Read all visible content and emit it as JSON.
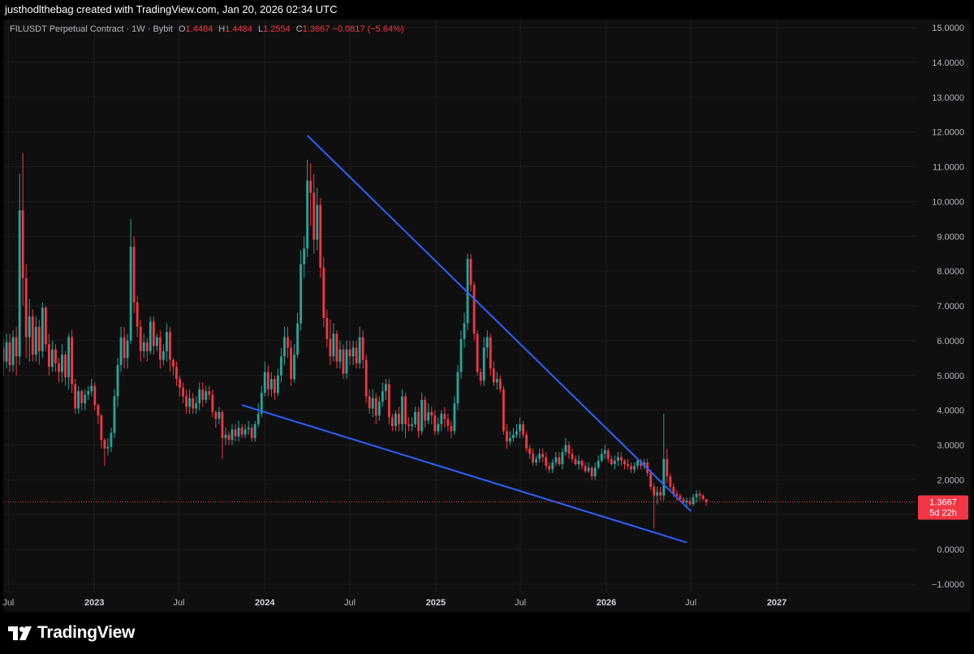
{
  "header": {
    "credit": "justhodlthebag created with TradingView.com, Jan 20, 2026 02:34 UTC"
  },
  "legend": {
    "symbol": "FILUSDT Perpetual Contract · 1W · Bybit",
    "o_label": "O",
    "o_value": "1.4484",
    "h_label": "H",
    "h_value": "1.4484",
    "l_label": "L",
    "l_value": "1.2554",
    "c_label": "C",
    "c_value": "1.3667",
    "change": "−0.0817 (−5.64%)"
  },
  "price_tag": {
    "price": "1.3667",
    "countdown": "5d 22h"
  },
  "footer": {
    "brand": "TradingView"
  },
  "colors": {
    "up": "#26a69a",
    "down": "#f23645",
    "trendline": "#2962ff",
    "background": "#0f0f0f",
    "grid": "#1e1e1e"
  },
  "chart_data": {
    "type": "candlestick",
    "symbol": "FILUSDT",
    "interval": "1W",
    "ylim": [
      -1,
      15
    ],
    "y_ticks": [
      "15.0000",
      "14.0000",
      "13.0000",
      "12.0000",
      "11.0000",
      "10.0000",
      "9.0000",
      "8.0000",
      "7.0000",
      "6.0000",
      "5.0000",
      "4.0000",
      "3.0000",
      "2.0000",
      "1.0000",
      "0.0000",
      "−1.0000"
    ],
    "y_tick_values": [
      15,
      14,
      13,
      12,
      11,
      10,
      9,
      8,
      7,
      6,
      5,
      4,
      3,
      2,
      1,
      0,
      -1
    ],
    "x_range": [
      "2022-06-20",
      "2027-10-25"
    ],
    "x_ticks": [
      {
        "label": "Jul",
        "date": "2022-07-01",
        "bold": false
      },
      {
        "label": "2023",
        "date": "2023-01-01",
        "bold": true
      },
      {
        "label": "Jul",
        "date": "2023-07-01",
        "bold": false
      },
      {
        "label": "2024",
        "date": "2024-01-01",
        "bold": true
      },
      {
        "label": "Jul",
        "date": "2024-07-01",
        "bold": false
      },
      {
        "label": "2025",
        "date": "2025-01-01",
        "bold": true
      },
      {
        "label": "Jul",
        "date": "2025-07-01",
        "bold": false
      },
      {
        "label": "2026",
        "date": "2026-01-01",
        "bold": true
      },
      {
        "label": "Jul",
        "date": "2026-07-01",
        "bold": false
      },
      {
        "label": "2027",
        "date": "2027-01-01",
        "bold": true
      }
    ],
    "last_price": 1.3667,
    "series": [
      {
        "name": "FILUSDT",
        "start_date": "2022-06-20",
        "open_first": 5.8,
        "closes": [
          5.4,
          5.95,
          5.3,
          6.1,
          5.55,
          9.75,
          7.8,
          6.1,
          6.7,
          5.6,
          6.4,
          5.7,
          6.95,
          5.9,
          5.25,
          5.75,
          5.35,
          5.1,
          5.6,
          4.95,
          6.1,
          4.75,
          4.05,
          4.55,
          4.2,
          4.45,
          4.55,
          4.7,
          4.15,
          3.85,
          3.15,
          2.9,
          2.95,
          3.35,
          4.4,
          5.3,
          6.1,
          5.5,
          6.0,
          8.7,
          7.1,
          6.4,
          5.7,
          5.95,
          5.7,
          6.55,
          5.85,
          6.1,
          5.45,
          5.7,
          6.25,
          5.45,
          5.25,
          4.9,
          4.65,
          4.4,
          4.1,
          4.35,
          4.05,
          4.2,
          4.6,
          4.3,
          4.55,
          4.45,
          3.95,
          3.75,
          3.95,
          3.2,
          3.3,
          3.15,
          3.45,
          3.25,
          3.5,
          3.3,
          3.45,
          3.5,
          3.2,
          3.6,
          3.9,
          4.5,
          5.1,
          4.6,
          4.9,
          4.5,
          5.0,
          5.55,
          6.1,
          5.8,
          4.9,
          5.6,
          6.5,
          8.2,
          8.65,
          10.6,
          10.25,
          8.9,
          9.9,
          8.1,
          6.65,
          6.05,
          5.55,
          6.2,
          5.4,
          5.75,
          5.05,
          5.75,
          5.55,
          5.8,
          5.35,
          6.1,
          5.45,
          4.4,
          4.05,
          4.35,
          3.85,
          4.25,
          4.55,
          4.75,
          3.8,
          3.55,
          3.9,
          3.6,
          4.4,
          3.6,
          3.55,
          3.6,
          3.95,
          3.4,
          4.3,
          3.7,
          3.95,
          3.85,
          3.4,
          3.6,
          3.9,
          3.75,
          3.55,
          3.4,
          4.2,
          5.1,
          6.05,
          6.5,
          8.35,
          7.6,
          6.2,
          5.1,
          4.85,
          5.8,
          6.1,
          5.2,
          4.8,
          4.9,
          4.6,
          3.4,
          3.1,
          3.2,
          3.3,
          3.4,
          3.6,
          3.3,
          2.9,
          2.75,
          2.5,
          2.6,
          2.75,
          2.65,
          2.4,
          2.3,
          2.5,
          2.65,
          2.45,
          2.8,
          3.0,
          2.75,
          2.6,
          2.45,
          2.55,
          2.4,
          2.25,
          2.35,
          2.1,
          2.35,
          2.55,
          2.75,
          2.85,
          2.6,
          2.45,
          2.55,
          2.65,
          2.55,
          2.45,
          2.4,
          2.3,
          2.4,
          2.55,
          2.4,
          2.5,
          2.2,
          1.8,
          1.55,
          1.65,
          1.55,
          2.6,
          2.1,
          1.8,
          1.6,
          1.55,
          1.45,
          1.35,
          1.4,
          1.3,
          1.5,
          1.6,
          1.55,
          1.45,
          1.3667
        ],
        "lows": [
          5.0,
          5.2,
          5.1,
          5.1,
          5.0,
          5.3,
          7.0,
          5.5,
          5.4,
          5.4,
          5.4,
          5.3,
          5.5,
          5.7,
          5.0,
          5.1,
          5.1,
          4.8,
          4.8,
          4.7,
          4.6,
          4.5,
          3.9,
          3.9,
          4.0,
          4.0,
          4.3,
          4.4,
          4.0,
          3.6,
          2.9,
          2.4,
          2.7,
          2.8,
          3.2,
          4.1,
          5.1,
          5.2,
          5.2,
          5.9,
          6.8,
          6.1,
          5.4,
          5.5,
          5.4,
          5.6,
          5.6,
          5.7,
          5.2,
          5.3,
          5.4,
          5.1,
          5.0,
          4.7,
          4.4,
          4.2,
          3.9,
          3.9,
          3.9,
          3.9,
          4.0,
          4.1,
          4.2,
          4.3,
          3.8,
          3.5,
          3.6,
          2.6,
          3.0,
          3.0,
          3.0,
          3.1,
          3.1,
          3.2,
          3.2,
          3.3,
          3.1,
          3.1,
          3.5,
          3.8,
          4.4,
          4.4,
          4.4,
          4.3,
          4.4,
          4.8,
          5.3,
          5.5,
          4.7,
          4.8,
          5.5,
          6.3,
          7.8,
          8.4,
          9.3,
          8.5,
          8.6,
          7.8,
          6.4,
          5.8,
          5.3,
          5.4,
          5.2,
          5.2,
          4.9,
          4.9,
          5.3,
          5.3,
          5.2,
          5.2,
          5.2,
          4.2,
          3.9,
          3.8,
          3.6,
          3.7,
          4.1,
          4.3,
          3.6,
          3.4,
          3.4,
          3.4,
          3.4,
          3.2,
          3.4,
          3.4,
          3.5,
          3.2,
          3.3,
          3.5,
          3.6,
          3.6,
          3.3,
          3.3,
          3.4,
          3.5,
          3.4,
          3.2,
          3.3,
          4.0,
          4.9,
          5.8,
          6.3,
          7.4,
          6.0,
          5.0,
          4.7,
          4.7,
          5.5,
          5.0,
          4.7,
          4.6,
          4.5,
          3.3,
          2.9,
          3.0,
          3.1,
          3.2,
          3.2,
          3.2,
          2.8,
          2.6,
          2.4,
          2.4,
          2.5,
          2.5,
          2.3,
          2.2,
          2.2,
          2.4,
          2.4,
          2.3,
          2.7,
          2.6,
          2.5,
          2.4,
          2.3,
          2.3,
          2.2,
          2.2,
          2.0,
          2.0,
          2.3,
          2.5,
          2.6,
          2.5,
          2.4,
          2.3,
          2.4,
          2.4,
          2.3,
          2.3,
          2.2,
          2.2,
          2.3,
          2.3,
          2.3,
          2.1,
          1.7,
          0.6,
          1.3,
          1.4,
          1.4,
          1.9,
          1.7,
          1.5,
          1.4,
          1.4,
          1.3,
          1.2,
          1.25,
          1.25,
          1.35,
          1.4,
          1.4,
          1.2554
        ],
        "highs": [
          6.1,
          6.2,
          6.2,
          6.3,
          6.4,
          10.8,
          11.4,
          8.2,
          7.2,
          6.9,
          6.7,
          6.6,
          7.1,
          7.0,
          6.2,
          6.0,
          5.9,
          5.5,
          5.9,
          5.7,
          6.2,
          6.3,
          4.9,
          4.7,
          4.6,
          4.6,
          4.7,
          4.9,
          4.8,
          4.2,
          3.9,
          3.2,
          3.2,
          3.5,
          4.6,
          5.5,
          6.4,
          6.4,
          6.2,
          9.5,
          9.0,
          7.3,
          6.6,
          6.2,
          6.1,
          6.7,
          6.7,
          6.2,
          6.3,
          5.9,
          6.5,
          6.4,
          5.5,
          5.4,
          5.0,
          4.8,
          4.6,
          4.6,
          4.5,
          4.4,
          4.8,
          4.8,
          4.7,
          4.7,
          4.6,
          4.0,
          4.1,
          4.0,
          3.5,
          3.4,
          3.6,
          3.6,
          3.7,
          3.6,
          3.6,
          3.7,
          3.6,
          3.7,
          4.2,
          4.7,
          5.4,
          5.3,
          5.1,
          5.0,
          5.2,
          5.8,
          6.4,
          6.4,
          6.0,
          5.9,
          6.8,
          8.6,
          9.0,
          11.2,
          11.1,
          10.8,
          10.4,
          10.1,
          8.4,
          6.9,
          6.6,
          6.5,
          6.3,
          6.0,
          5.9,
          6.0,
          6.0,
          6.0,
          6.0,
          6.4,
          6.3,
          5.6,
          4.6,
          4.6,
          4.5,
          4.4,
          4.8,
          4.9,
          4.9,
          3.9,
          4.0,
          4.1,
          4.6,
          4.5,
          3.8,
          3.8,
          4.1,
          4.1,
          4.5,
          4.4,
          4.2,
          4.1,
          4.0,
          3.8,
          4.0,
          4.1,
          3.9,
          3.7,
          4.4,
          5.3,
          6.3,
          6.8,
          8.5,
          8.5,
          7.7,
          6.3,
          5.2,
          6.1,
          6.3,
          6.2,
          5.4,
          5.1,
          5.0,
          4.7,
          3.6,
          3.4,
          3.5,
          3.6,
          3.8,
          3.7,
          3.4,
          3.0,
          2.9,
          2.7,
          2.9,
          2.9,
          2.8,
          2.5,
          2.6,
          2.8,
          2.8,
          2.9,
          3.2,
          3.1,
          2.9,
          2.7,
          2.7,
          2.6,
          2.5,
          2.5,
          2.4,
          2.5,
          2.7,
          2.9,
          3.0,
          2.9,
          2.7,
          2.7,
          2.8,
          2.8,
          2.6,
          2.6,
          2.5,
          2.5,
          2.6,
          2.6,
          2.6,
          2.6,
          2.3,
          1.9,
          1.8,
          1.8,
          3.9,
          2.9,
          2.2,
          1.9,
          1.7,
          1.6,
          1.5,
          1.5,
          1.5,
          1.6,
          1.7,
          1.7,
          1.6,
          1.4484
        ]
      }
    ],
    "annotations": [
      {
        "type": "trendline",
        "from": {
          "date": "2024-04-01",
          "value": 11.9
        },
        "to": {
          "date": "2026-07-01",
          "value": 1.1
        }
      },
      {
        "type": "trendline",
        "from": {
          "date": "2023-11-13",
          "value": 4.15
        },
        "to": {
          "date": "2026-06-22",
          "value": 0.2
        }
      }
    ]
  }
}
